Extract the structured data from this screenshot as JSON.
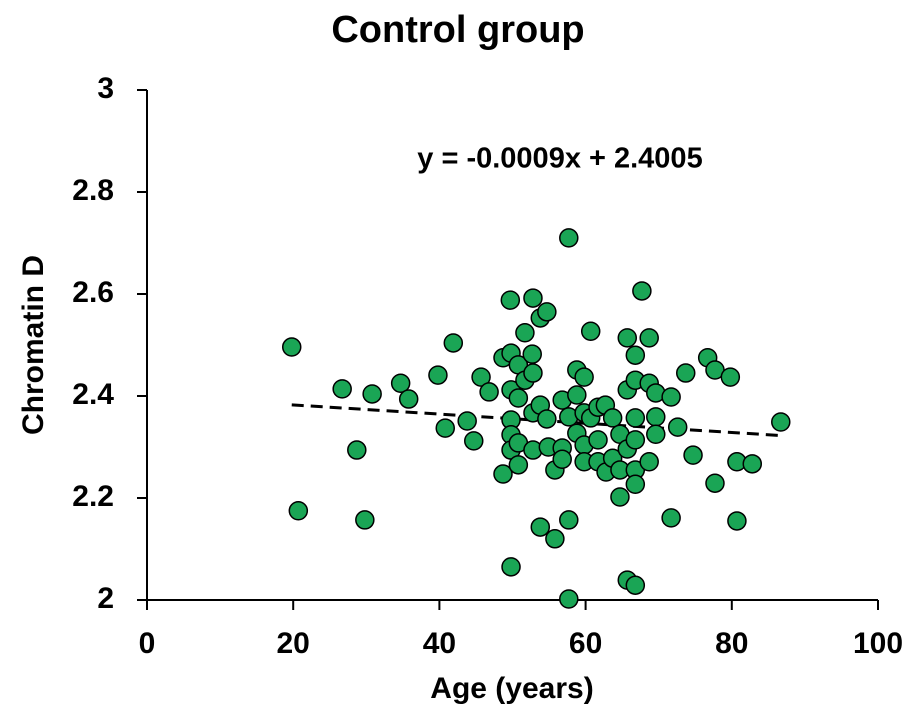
{
  "chart_data": {
    "type": "scatter",
    "title": "Control group",
    "x_label": "Age (years)",
    "y_label": "Chromatin D",
    "annotation": "y = -0.0009x + 2.4005",
    "trendline": {
      "slope": -0.0009,
      "intercept": 2.4005,
      "style": "dashed",
      "color": "#000000"
    },
    "marker_color": "#1aa555",
    "marker_edge": "#000000",
    "xlim": [
      0,
      100
    ],
    "xticks": [
      0,
      20,
      40,
      60,
      80,
      100
    ],
    "ylim": [
      2,
      3
    ],
    "yticks": [
      2,
      {
        "value": 2.2,
        "label": "2.2"
      },
      {
        "value": 2.4,
        "label": "2.4"
      },
      {
        "value": 2.6,
        "label": "2.6"
      },
      {
        "value": 2.8,
        "label": "2.8"
      },
      3
    ],
    "grid": false,
    "x": [
      19.8,
      20.7,
      26.7,
      29.8,
      28.7,
      30.8,
      34.7,
      35.8,
      39.8,
      40.8,
      41.9,
      43.8,
      44.7,
      45.7,
      46.8,
      48.7,
      48.7,
      49.7,
      49.8,
      49.8,
      49.8,
      49.8,
      49.8,
      49.8,
      50.8,
      50.8,
      50.8,
      50.8,
      51.7,
      51.7,
      52.7,
      52.8,
      52.8,
      52.8,
      52.8,
      53.8,
      53.8,
      53.8,
      54.7,
      54.7,
      54.9,
      55.8,
      55.8,
      56.8,
      56.8,
      56.8,
      57.7,
      57.7,
      57.7,
      57.7,
      58.8,
      58.8,
      58.8,
      59.8,
      59.8,
      59.8,
      59.8,
      60.7,
      60.7,
      61.7,
      61.7,
      61.7,
      62.7,
      62.8,
      63.7,
      63.7,
      64.7,
      64.7,
      64.7,
      65.7,
      65.7,
      65.7,
      65.7,
      66.8,
      66.8,
      66.8,
      66.8,
      66.8,
      66.8,
      66.8,
      67.7,
      68.7,
      68.7,
      68.7,
      69.6,
      69.6,
      69.6,
      71.7,
      71.7,
      72.6,
      73.7,
      74.7,
      76.7,
      77.7,
      77.7,
      79.8,
      80.7,
      80.7,
      82.8,
      86.7
    ],
    "y": [
      2.496,
      2.175,
      2.414,
      2.157,
      2.294,
      2.404,
      2.425,
      2.394,
      2.441,
      2.337,
      2.504,
      2.351,
      2.312,
      2.437,
      2.408,
      2.475,
      2.247,
      2.588,
      2.065,
      2.484,
      2.412,
      2.353,
      2.324,
      2.294,
      2.461,
      2.396,
      2.308,
      2.265,
      2.524,
      2.431,
      2.482,
      2.592,
      2.445,
      2.367,
      2.294,
      2.553,
      2.143,
      2.382,
      2.565,
      2.355,
      2.3,
      2.12,
      2.255,
      2.298,
      2.276,
      2.392,
      2.71,
      2.157,
      2.002,
      2.359,
      2.451,
      2.402,
      2.327,
      2.437,
      2.304,
      2.271,
      2.367,
      2.527,
      2.357,
      2.378,
      2.314,
      2.271,
      2.382,
      2.251,
      2.357,
      2.278,
      2.325,
      2.202,
      2.255,
      2.514,
      2.412,
      2.039,
      2.296,
      2.029,
      2.48,
      2.431,
      2.357,
      2.314,
      2.255,
      2.227,
      2.606,
      2.514,
      2.425,
      2.271,
      2.406,
      2.359,
      2.325,
      2.161,
      2.398,
      2.339,
      2.445,
      2.284,
      2.475,
      2.451,
      2.229,
      2.437,
      2.271,
      2.155,
      2.267,
      2.349
    ]
  }
}
